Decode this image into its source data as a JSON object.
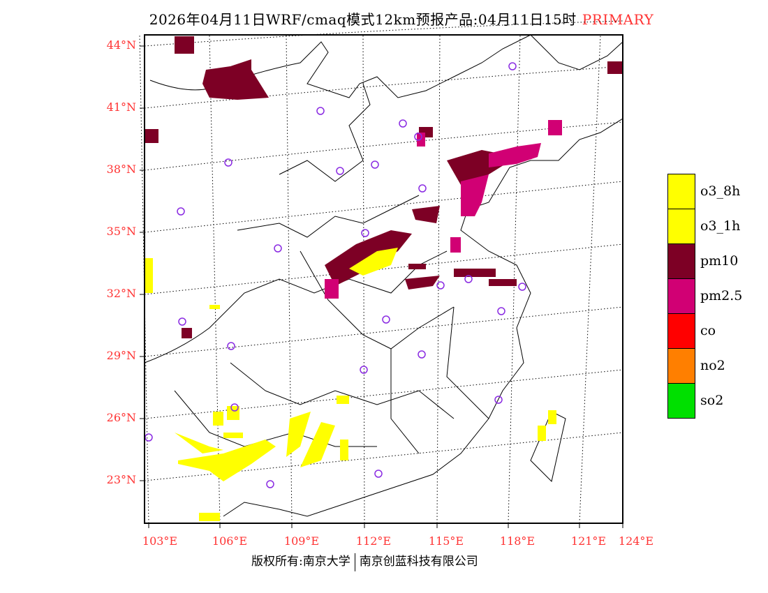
{
  "title": {
    "main": "2026年04月11日WRF/cmaq模式12km预报产品:04月11日15时",
    "tag": "PRIMARY"
  },
  "lat_labels": [
    "44°N",
    "41°N",
    "38°N",
    "35°N",
    "32°N",
    "29°N",
    "26°N",
    "23°N"
  ],
  "lon_labels": [
    "103°E",
    "106°E",
    "109°E",
    "112°E",
    "115°E",
    "118°E",
    "121°E",
    "124°E"
  ],
  "legend": [
    {
      "label": "o3_8h",
      "color": "#ffff00"
    },
    {
      "label": "o3_1h",
      "color": "#ffff00"
    },
    {
      "label": "pm10",
      "color": "#7d0025"
    },
    {
      "label": "pm2.5",
      "color": "#d10074"
    },
    {
      "label": "co",
      "color": "#ff0000"
    },
    {
      "label": "no2",
      "color": "#ff7f00"
    },
    {
      "label": "so2",
      "color": "#00e000"
    }
  ],
  "footer": {
    "left": "版权所有:南京大学",
    "right": "南京创蓝科技有限公司"
  },
  "colors": {
    "axis_label": "#ff3333",
    "station": "#8a2be2"
  }
}
